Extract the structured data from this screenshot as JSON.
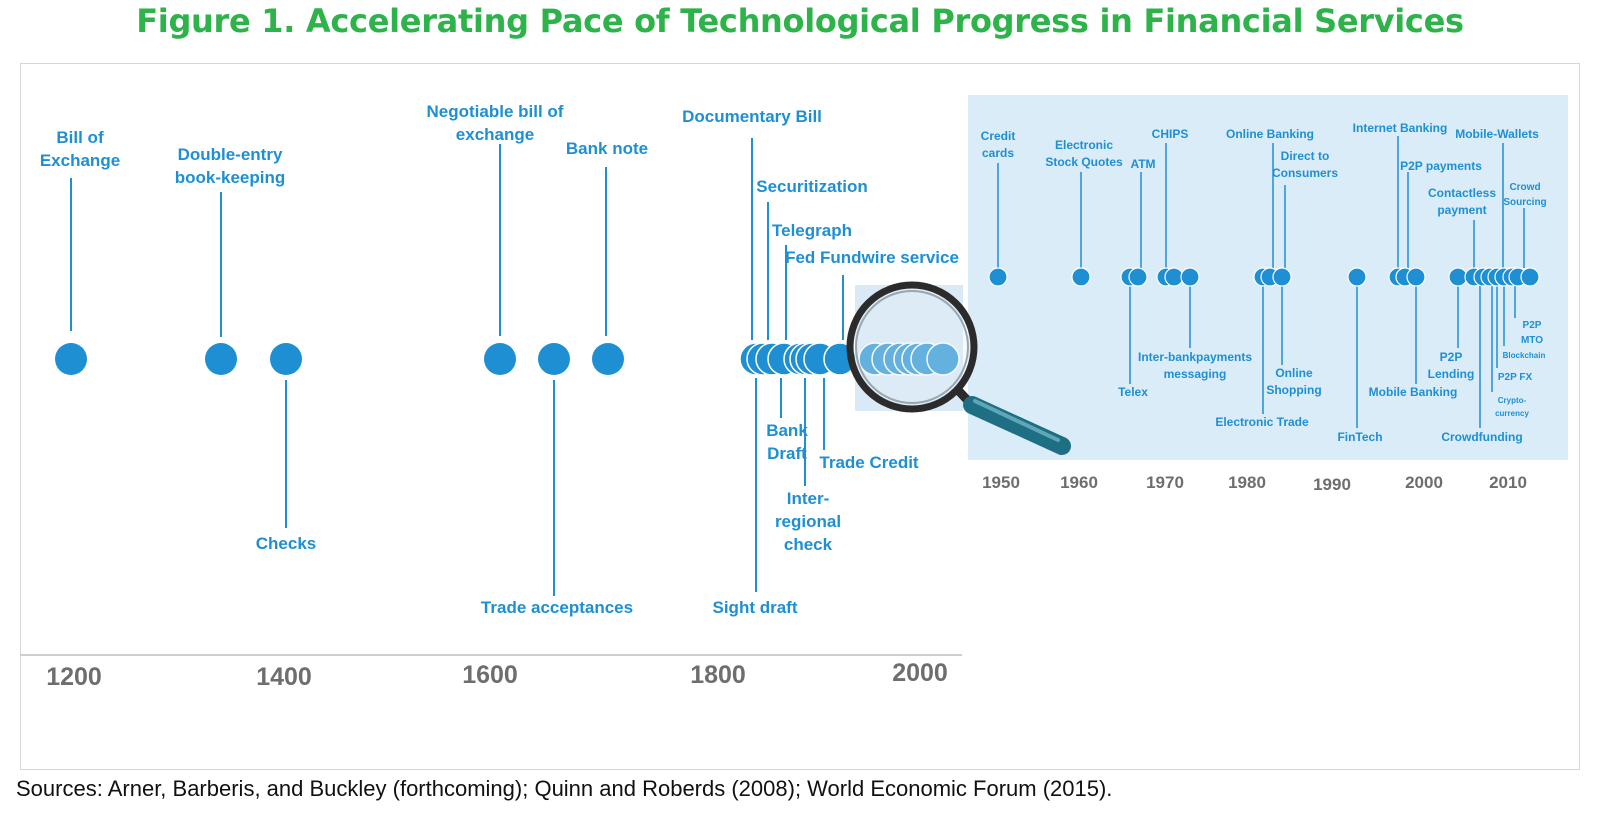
{
  "figure": {
    "title": "Figure 1. Accelerating Pace of Technological Progress in Financial Services",
    "source": "Sources: Arner, Barberis, and Buckley (forthcoming); Quinn and Roberds (2008); World Economic Forum (2015)."
  },
  "colors": {
    "title": "#2db34a",
    "accent": "#1f8fd3",
    "inset_bg": "#d9ecf8",
    "axis_text": "#6e6e6e"
  },
  "main_timeline": {
    "axis_ticks": [
      "1200",
      "1400",
      "1600",
      "1800",
      "2000"
    ],
    "events": [
      {
        "label": "Bill of Exchange",
        "lines": [
          "Bill of",
          "Exchange"
        ]
      },
      {
        "label": "Double-entry book-keeping",
        "lines": [
          "Double-entry",
          "book-keeping"
        ]
      },
      {
        "label": "Checks",
        "lines": [
          "Checks"
        ]
      },
      {
        "label": "Negotiable bill of exchange",
        "lines": [
          "Negotiable bill of",
          "exchange"
        ]
      },
      {
        "label": "Trade acceptances",
        "lines": [
          "Trade acceptances"
        ]
      },
      {
        "label": "Bank note",
        "lines": [
          "Bank note"
        ]
      },
      {
        "label": "Documentary Bill",
        "lines": [
          "Documentary Bill"
        ]
      },
      {
        "label": "Sight draft",
        "lines": [
          "Sight draft"
        ]
      },
      {
        "label": "Securitization",
        "lines": [
          "Securitization"
        ]
      },
      {
        "label": "Bank Draft",
        "lines": [
          "Bank",
          "Draft"
        ]
      },
      {
        "label": "Telegraph",
        "lines": [
          "Telegraph"
        ]
      },
      {
        "label": "Inter-regional check",
        "lines": [
          "Inter-",
          "regional",
          "check"
        ]
      },
      {
        "label": "Trade Credit",
        "lines": [
          "Trade Credit"
        ]
      },
      {
        "label": "Fed Fundwire service",
        "lines": [
          "Fed Fundwire service"
        ]
      }
    ]
  },
  "inset_timeline": {
    "axis_ticks": [
      "1950",
      "1960",
      "1970",
      "1980",
      "1990",
      "2000",
      "2010"
    ],
    "events": [
      {
        "label": "Credit cards",
        "lines": [
          "Credit",
          "cards"
        ]
      },
      {
        "label": "Electronic Stock Quotes",
        "lines": [
          "Electronic",
          "Stock Quotes"
        ]
      },
      {
        "label": "ATM",
        "lines": [
          "ATM"
        ]
      },
      {
        "label": "Telex",
        "lines": [
          "Telex"
        ]
      },
      {
        "label": "CHIPS",
        "lines": [
          "CHIPS"
        ]
      },
      {
        "label": "Inter-bankpayments messaging",
        "lines": [
          "Inter-bankpayments",
          "messaging"
        ]
      },
      {
        "label": "Online Banking",
        "lines": [
          "Online Banking"
        ]
      },
      {
        "label": "Electronic Trade",
        "lines": [
          "Electronic Trade"
        ]
      },
      {
        "label": "Direct to Consumers",
        "lines": [
          "Direct to",
          "Consumers"
        ]
      },
      {
        "label": "Online Shopping",
        "lines": [
          "Online",
          "Shopping"
        ]
      },
      {
        "label": "FinTech",
        "lines": [
          "FinTech"
        ]
      },
      {
        "label": "Internet Banking",
        "lines": [
          "Internet Banking"
        ]
      },
      {
        "label": "P2P payments",
        "lines": [
          "P2P payments"
        ]
      },
      {
        "label": "Mobile Banking",
        "lines": [
          "Mobile Banking"
        ]
      },
      {
        "label": "Contactless payment",
        "lines": [
          "Contactless",
          "payment"
        ]
      },
      {
        "label": "P2P Lending",
        "lines": [
          "P2P",
          "Lending"
        ]
      },
      {
        "label": "Crowdfunding",
        "lines": [
          "Crowdfunding"
        ]
      },
      {
        "label": "Mobile-Wallets",
        "lines": [
          "Mobile-Wallets"
        ]
      },
      {
        "label": "Crypto-currency",
        "lines": [
          "Crypto-",
          "currency"
        ]
      },
      {
        "label": "P2P FX",
        "lines": [
          "P2P FX"
        ]
      },
      {
        "label": "Blockchain",
        "lines": [
          "Blockchain"
        ]
      },
      {
        "label": "Crowd Sourcing",
        "lines": [
          "Crowd",
          "Sourcing"
        ]
      },
      {
        "label": "P2P MTO",
        "lines": [
          "P2P",
          "MTO"
        ]
      }
    ]
  }
}
